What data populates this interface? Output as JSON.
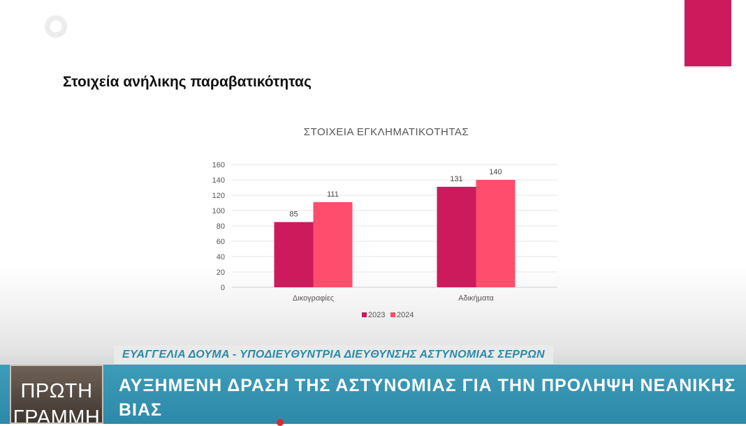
{
  "slide": {
    "title": "Στοιχεία ανήλικης παραβατικότητας"
  },
  "chart_data": {
    "type": "bar",
    "title": "ΣΤΟΙΧΕΙΑ ΕΓΚΛΗΜΑΤΙΚΟΤΗΤΑΣ",
    "categories": [
      "Δικογραφίες",
      "Αδικήματα"
    ],
    "series": [
      {
        "name": "2023",
        "values": [
          85,
          131
        ],
        "color": "#cc1a5d"
      },
      {
        "name": "2024",
        "values": [
          111,
          140
        ],
        "color": "#ff4d6d"
      }
    ],
    "ylim": [
      0,
      160
    ],
    "yticks": [
      0,
      20,
      40,
      60,
      80,
      100,
      120,
      140,
      160
    ],
    "grid": true,
    "legend": "bottom"
  },
  "overlay": {
    "speaker": "ΕΥΑΓΓΕΛΙΑ ΔΟΥΜΑ - ΥΠΟΔΙΕΥΘΥΝΤΡΙΑ ΔΙΕΥΘΥΝΣΗΣ ΑΣΤΥΝΟΜΙΑΣ ΣΕΡΡΩΝ",
    "brand_line1": "ΠΡΩΤΗ",
    "brand_line2": "ΓΡΑΜΜΗ",
    "headline": "ΑΥΞΗΜΕΝΗ ΔΡΑΣΗ ΤΗΣ ΑΣΤΥΝΟΜΙΑΣ ΓΙΑ ΤΗΝ ΠΡΟΛΗΨΗ ΝΕΑΝΙΚΗΣ ΒΙΑΣ"
  }
}
